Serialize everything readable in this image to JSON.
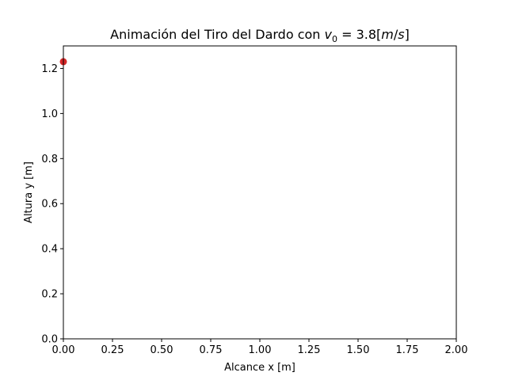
{
  "chart_data": {
    "type": "scatter",
    "title": {
      "prefix": "Animación del Tiro del Dardo con ",
      "var": "v",
      "sub": "0",
      "eq": " = 3.8[",
      "unit1": "m",
      "slash": "/",
      "unit2": "s",
      "close": "]"
    },
    "xlabel": "Alcance x [m]",
    "ylabel": "Altura y [m]",
    "xlim": [
      0,
      2.0
    ],
    "ylim": [
      0,
      1.3
    ],
    "xticks": [
      0,
      0.25,
      0.5,
      0.75,
      1.0,
      1.25,
      1.5,
      1.75,
      2.0
    ],
    "xtick_labels": [
      "0.00",
      "0.25",
      "0.50",
      "0.75",
      "1.00",
      "1.25",
      "1.50",
      "1.75",
      "2.00"
    ],
    "yticks": [
      0,
      0.2,
      0.4,
      0.6,
      0.8,
      1.0,
      1.2
    ],
    "ytick_labels": [
      "0.0",
      "0.2",
      "0.4",
      "0.6",
      "0.8",
      "1.0",
      "1.2"
    ],
    "series": [
      {
        "x": [
          0.0
        ],
        "y": [
          1.23
        ],
        "color": "#d62728"
      }
    ],
    "grid": false,
    "legend": "none"
  }
}
